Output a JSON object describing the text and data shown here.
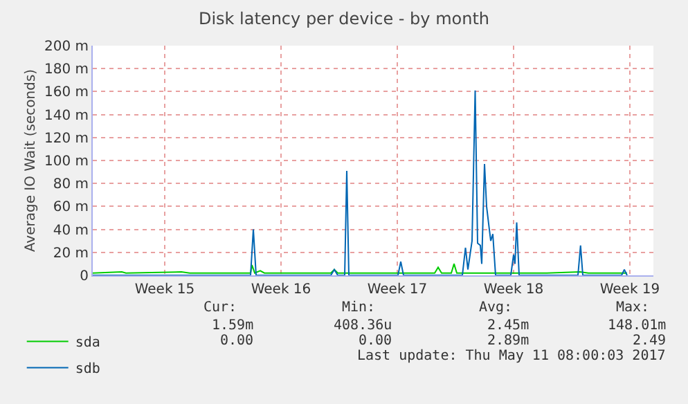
{
  "chart_data": {
    "type": "line",
    "title": "Disk latency per device - by month",
    "ylabel": "Average IO Wait (seconds)",
    "xlim": [
      "2017-04-09T04:00",
      "2017-05-12T22:00"
    ],
    "xticks": [
      {
        "value": "2017-04-13T12:00",
        "label": "Week 15"
      },
      {
        "value": "2017-04-20T12:00",
        "label": "Week 16"
      },
      {
        "value": "2017-04-27T12:00",
        "label": "Week 17"
      },
      {
        "value": "2017-05-04T12:00",
        "label": "Week 18"
      },
      {
        "value": "2017-05-11T12:00",
        "label": "Week 19"
      }
    ],
    "ylim": [
      0,
      200
    ],
    "yticks": [
      0,
      {
        "value": 20,
        "label": "20 m"
      },
      {
        "value": 40,
        "label": "40 m"
      },
      {
        "value": 60,
        "label": "60 m"
      },
      {
        "value": 80,
        "label": "80 m"
      },
      {
        "value": 100,
        "label": "100 m"
      },
      {
        "value": 120,
        "label": "120 m"
      },
      {
        "value": 140,
        "label": "140 m"
      },
      {
        "value": 160,
        "label": "160 m"
      },
      {
        "value": 180,
        "label": "180 m"
      },
      {
        "value": 200,
        "label": "200 m"
      }
    ],
    "grid": true,
    "legend": "bottom left",
    "marker": "none",
    "line_style": "solid",
    "series": [
      {
        "name": "sda",
        "color": "#00cc00",
        "x": [
          "2017-04-09T04:00",
          "2017-04-10T22:00",
          "2017-04-11T04:00",
          "2017-04-14T12:00",
          "2017-04-15T00:00",
          "2017-04-18T16:00",
          "2017-04-18T18:00",
          "2017-04-18T22:00",
          "2017-04-19T06:00",
          "2017-04-19T12:00",
          "2017-04-23T12:00",
          "2017-04-23T17:00",
          "2017-04-23T22:00",
          "2017-04-29T18:00",
          "2017-04-29T23:00",
          "2017-04-30T04:00",
          "2017-04-30T18:00",
          "2017-04-30T22:00",
          "2017-05-01T02:00",
          "2017-05-06T12:00",
          "2017-05-08T12:00",
          "2017-05-09T00:00",
          "2017-05-11T08:00"
        ],
        "values": [
          2,
          3,
          2,
          3,
          2,
          2,
          9,
          2,
          4,
          2,
          2,
          5,
          2,
          2,
          7,
          2,
          2,
          10,
          2,
          2,
          3,
          2,
          2
        ]
      },
      {
        "name": "sdb",
        "color": "#0066b3",
        "x": [
          "2017-04-09T04:00",
          "2017-04-18T16:00",
          "2017-04-18T20:00",
          "2017-04-19T00:00",
          "2017-04-23T12:00",
          "2017-04-23T17:00",
          "2017-04-23T22:00",
          "2017-04-24T08:00",
          "2017-04-24T11:00",
          "2017-04-24T14:00",
          "2017-04-27T13:00",
          "2017-04-27T17:00",
          "2017-04-27T21:00",
          "2017-05-01T10:00",
          "2017-05-01T14:30",
          "2017-05-01T18:00",
          "2017-05-02T00:00",
          "2017-05-02T04:30",
          "2017-05-02T08:00",
          "2017-05-02T12:00",
          "2017-05-02T14:00",
          "2017-05-02T18:00",
          "2017-05-02T21:00",
          "2017-05-03T00:45",
          "2017-05-03T03:00",
          "2017-05-03T06:00",
          "2017-05-03T10:00",
          "2017-05-04T08:00",
          "2017-05-04T12:00",
          "2017-05-04T14:00",
          "2017-05-04T16:30",
          "2017-05-04T20:00",
          "2017-05-08T09:00",
          "2017-05-08T12:45",
          "2017-05-08T16:00",
          "2017-05-11T00:00",
          "2017-05-11T04:00",
          "2017-05-11T08:00"
        ],
        "values": [
          0,
          0,
          40,
          0,
          0,
          5,
          0,
          0,
          91,
          0,
          0,
          12,
          0,
          0,
          24,
          5,
          30,
          161,
          28,
          26,
          10,
          97,
          60,
          41,
          30,
          36,
          0,
          0,
          18,
          10,
          46,
          0,
          0,
          26,
          0,
          0,
          5,
          0
        ]
      }
    ],
    "annotations": [
      "Cur:",
      "Min:",
      "Avg:",
      "Max:",
      "1.59m",
      "408.36u",
      "2.45m",
      "148.01m",
      "0.00",
      "0.00",
      "2.89m",
      "2.49",
      "Last update: Thu May 11 08:00:03 2017"
    ]
  }
}
